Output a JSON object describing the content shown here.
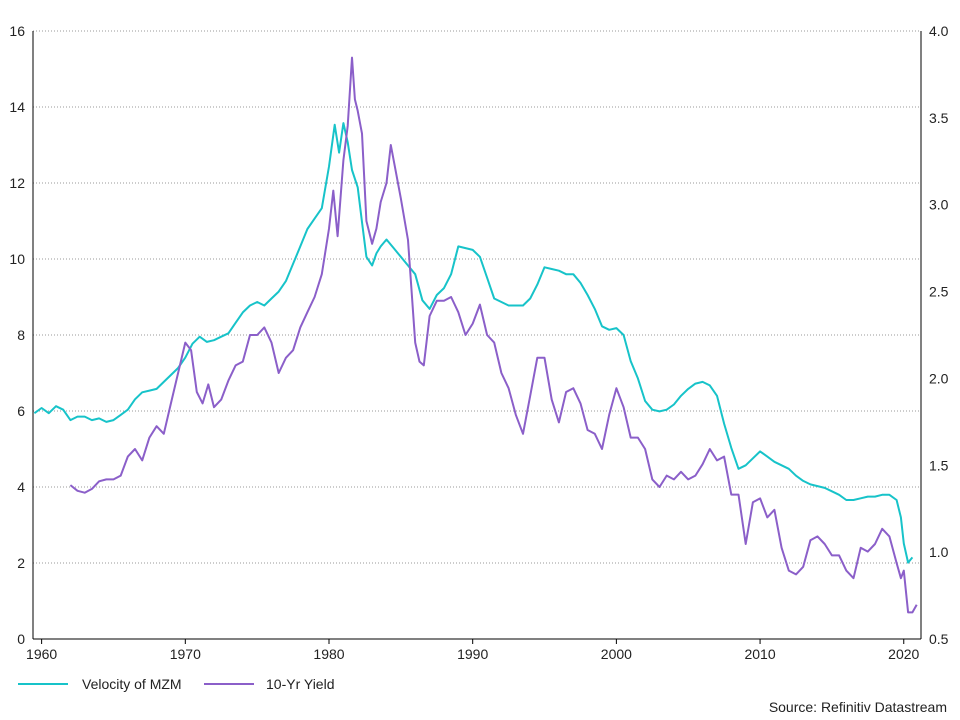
{
  "chart_data": {
    "type": "line",
    "title": "",
    "xlabel": "",
    "ylabel": "",
    "y2label": "",
    "xlim": [
      1959.4,
      2021.2
    ],
    "ylim": [
      0,
      16
    ],
    "y2lim": [
      0.5,
      4.0
    ],
    "xticks": [
      "1960",
      "1970",
      "1980",
      "1990",
      "2000",
      "2010",
      "2020"
    ],
    "yticks_left": [
      "0",
      "2",
      "4",
      "6",
      "8",
      "10",
      "12",
      "14",
      "16"
    ],
    "yticks_right": [
      "0.5",
      "1.0",
      "1.5",
      "2.0",
      "2.5",
      "3.0",
      "3.5",
      "4.0"
    ],
    "grid": "horizontal dotted",
    "legend_position": "bottom-left",
    "source_note": "Source: Refinitiv Datastream",
    "series": [
      {
        "name": "Velocity of MZM",
        "color": "#17c3c9",
        "axis": "right",
        "x": [
          1959.5,
          1960.0,
          1960.5,
          1961.0,
          1961.5,
          1962.0,
          1962.5,
          1963.0,
          1963.5,
          1964.0,
          1964.5,
          1965.0,
          1965.5,
          1966.0,
          1966.5,
          1967.0,
          1967.5,
          1968.0,
          1968.5,
          1969.0,
          1969.5,
          1970.0,
          1970.5,
          1971.0,
          1971.5,
          1972.0,
          1972.5,
          1973.0,
          1973.5,
          1974.0,
          1974.5,
          1975.0,
          1975.5,
          1976.0,
          1976.5,
          1977.0,
          1977.5,
          1978.0,
          1978.5,
          1979.0,
          1979.5,
          1980.0,
          1980.4,
          1980.7,
          1981.0,
          1981.3,
          1981.6,
          1982.0,
          1982.3,
          1982.6,
          1983.0,
          1983.3,
          1983.6,
          1984.0,
          1984.5,
          1985.0,
          1985.5,
          1986.0,
          1986.5,
          1987.0,
          1987.5,
          1988.0,
          1988.5,
          1989.0,
          1989.5,
          1990.0,
          1990.5,
          1991.0,
          1991.5,
          1992.0,
          1992.5,
          1993.0,
          1993.5,
          1994.0,
          1994.5,
          1995.0,
          1995.5,
          1996.0,
          1996.5,
          1997.0,
          1997.5,
          1998.0,
          1998.5,
          1999.0,
          1999.5,
          2000.0,
          2000.5,
          2001.0,
          2001.5,
          2002.0,
          2002.5,
          2003.0,
          2003.5,
          2004.0,
          2004.5,
          2005.0,
          2005.5,
          2006.0,
          2006.5,
          2007.0,
          2007.5,
          2008.0,
          2008.5,
          2009.0,
          2009.5,
          2010.0,
          2010.5,
          2011.0,
          2011.5,
          2012.0,
          2012.5,
          2013.0,
          2013.5,
          2014.0,
          2014.5,
          2015.0,
          2015.5,
          2016.0,
          2016.5,
          2017.0,
          2017.5,
          2018.0,
          2018.5,
          2019.0,
          2019.5,
          2019.8,
          2020.0,
          2020.3,
          2020.6
        ],
        "y": [
          1.8,
          1.83,
          1.8,
          1.84,
          1.82,
          1.76,
          1.78,
          1.78,
          1.76,
          1.77,
          1.75,
          1.76,
          1.79,
          1.82,
          1.88,
          1.92,
          1.93,
          1.94,
          1.98,
          2.02,
          2.06,
          2.12,
          2.2,
          2.24,
          2.21,
          2.22,
          2.24,
          2.26,
          2.32,
          2.38,
          2.42,
          2.44,
          2.42,
          2.46,
          2.5,
          2.56,
          2.66,
          2.76,
          2.86,
          2.92,
          2.98,
          3.22,
          3.46,
          3.3,
          3.47,
          3.36,
          3.2,
          3.1,
          2.9,
          2.7,
          2.65,
          2.72,
          2.76,
          2.8,
          2.75,
          2.7,
          2.65,
          2.6,
          2.45,
          2.4,
          2.48,
          2.52,
          2.6,
          2.76,
          2.75,
          2.74,
          2.7,
          2.58,
          2.46,
          2.44,
          2.42,
          2.42,
          2.42,
          2.46,
          2.54,
          2.64,
          2.63,
          2.62,
          2.6,
          2.6,
          2.55,
          2.48,
          2.4,
          2.3,
          2.28,
          2.29,
          2.25,
          2.1,
          2.0,
          1.87,
          1.82,
          1.81,
          1.82,
          1.85,
          1.9,
          1.94,
          1.97,
          1.98,
          1.96,
          1.9,
          1.74,
          1.6,
          1.48,
          1.5,
          1.54,
          1.58,
          1.55,
          1.52,
          1.5,
          1.48,
          1.44,
          1.41,
          1.39,
          1.38,
          1.37,
          1.35,
          1.33,
          1.3,
          1.3,
          1.31,
          1.32,
          1.32,
          1.33,
          1.33,
          1.3,
          1.2,
          1.05,
          0.94,
          0.97
        ]
      },
      {
        "name": "10-Yr Yield",
        "color": "#8b5fc9",
        "axis": "left",
        "x": [
          1962.0,
          1962.5,
          1963.0,
          1963.5,
          1964.0,
          1964.5,
          1965.0,
          1965.5,
          1966.0,
          1966.5,
          1967.0,
          1967.5,
          1968.0,
          1968.5,
          1969.0,
          1969.5,
          1970.0,
          1970.4,
          1970.8,
          1971.2,
          1971.6,
          1972.0,
          1972.5,
          1973.0,
          1973.5,
          1974.0,
          1974.5,
          1975.0,
          1975.5,
          1976.0,
          1976.5,
          1977.0,
          1977.5,
          1978.0,
          1978.5,
          1979.0,
          1979.5,
          1980.0,
          1980.3,
          1980.6,
          1981.0,
          1981.3,
          1981.6,
          1981.8,
          1982.0,
          1982.3,
          1982.6,
          1983.0,
          1983.3,
          1983.6,
          1984.0,
          1984.3,
          1984.6,
          1985.0,
          1985.5,
          1986.0,
          1986.3,
          1986.6,
          1987.0,
          1987.5,
          1988.0,
          1988.5,
          1989.0,
          1989.5,
          1990.0,
          1990.5,
          1991.0,
          1991.5,
          1992.0,
          1992.5,
          1993.0,
          1993.5,
          1994.0,
          1994.5,
          1995.0,
          1995.5,
          1996.0,
          1996.5,
          1997.0,
          1997.5,
          1998.0,
          1998.5,
          1999.0,
          1999.5,
          2000.0,
          2000.5,
          2001.0,
          2001.5,
          2002.0,
          2002.5,
          2003.0,
          2003.5,
          2004.0,
          2004.5,
          2005.0,
          2005.5,
          2006.0,
          2006.5,
          2007.0,
          2007.5,
          2008.0,
          2008.5,
          2009.0,
          2009.5,
          2010.0,
          2010.5,
          2011.0,
          2011.5,
          2012.0,
          2012.5,
          2013.0,
          2013.5,
          2014.0,
          2014.5,
          2015.0,
          2015.5,
          2016.0,
          2016.5,
          2017.0,
          2017.5,
          2018.0,
          2018.5,
          2019.0,
          2019.5,
          2019.8,
          2020.0,
          2020.3,
          2020.6,
          2020.9
        ],
        "y": [
          4.05,
          3.9,
          3.85,
          3.95,
          4.15,
          4.2,
          4.2,
          4.3,
          4.8,
          5.0,
          4.7,
          5.3,
          5.6,
          5.4,
          6.2,
          7.0,
          7.8,
          7.6,
          6.5,
          6.2,
          6.7,
          6.1,
          6.3,
          6.8,
          7.2,
          7.3,
          8.0,
          8.0,
          8.2,
          7.8,
          7.0,
          7.4,
          7.6,
          8.2,
          8.6,
          9.0,
          9.6,
          10.8,
          11.8,
          10.6,
          12.6,
          13.5,
          15.3,
          14.2,
          13.9,
          13.3,
          11.0,
          10.4,
          10.8,
          11.5,
          12.0,
          13.0,
          12.4,
          11.6,
          10.5,
          7.8,
          7.3,
          7.2,
          8.5,
          8.9,
          8.9,
          9.0,
          8.6,
          8.0,
          8.3,
          8.8,
          8.0,
          7.8,
          7.0,
          6.6,
          5.9,
          5.4,
          6.4,
          7.4,
          7.4,
          6.3,
          5.7,
          6.5,
          6.6,
          6.2,
          5.5,
          5.4,
          5.0,
          5.9,
          6.6,
          6.1,
          5.3,
          5.3,
          5.0,
          4.2,
          4.0,
          4.3,
          4.2,
          4.4,
          4.2,
          4.3,
          4.6,
          5.0,
          4.7,
          4.8,
          3.8,
          3.8,
          2.5,
          3.6,
          3.7,
          3.2,
          3.4,
          2.4,
          1.8,
          1.7,
          1.9,
          2.6,
          2.7,
          2.5,
          2.2,
          2.2,
          1.8,
          1.6,
          2.4,
          2.3,
          2.5,
          2.9,
          2.7,
          2.0,
          1.6,
          1.8,
          0.7,
          0.7,
          0.9
        ]
      }
    ]
  }
}
